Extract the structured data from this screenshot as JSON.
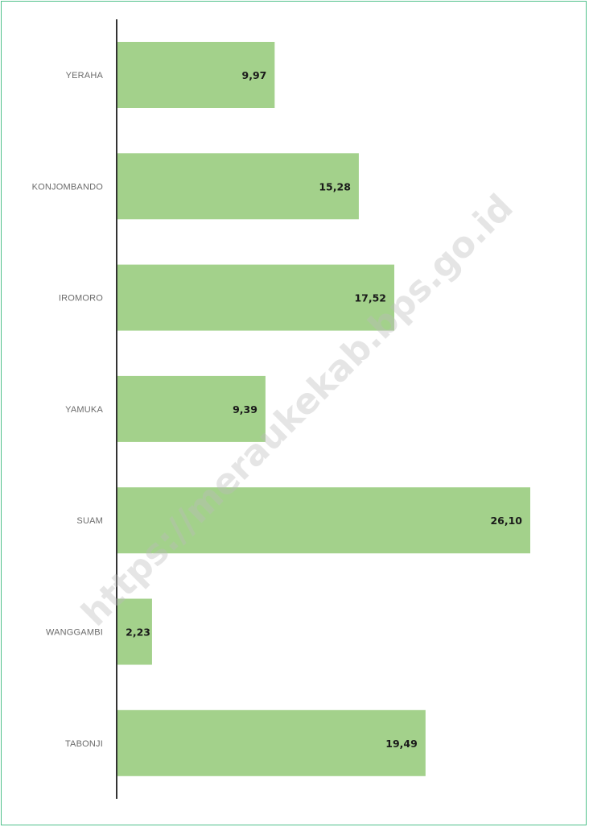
{
  "chart_data": {
    "type": "bar",
    "orientation": "horizontal",
    "categories": [
      "YERAHA",
      "KONJOMBANDO",
      "IROMORO",
      "YAMUKA",
      "SUAM",
      "WANGGAMBI",
      "TABONJI"
    ],
    "values": [
      9.97,
      15.28,
      17.52,
      9.39,
      26.1,
      2.23,
      19.49
    ],
    "value_labels": [
      "9,97",
      "15,28",
      "17,52",
      "9,39",
      "26,10",
      "2,23",
      "19,49"
    ],
    "title": "",
    "xlabel": "",
    "ylabel": "",
    "xlim": [
      0,
      28
    ],
    "grid": false,
    "legend": "none",
    "bar_color": "#a3d18b",
    "axis_color": "#333333"
  },
  "watermark": {
    "text": "https://meraukekab.bps.go.id",
    "color": "#bcbcbc"
  }
}
